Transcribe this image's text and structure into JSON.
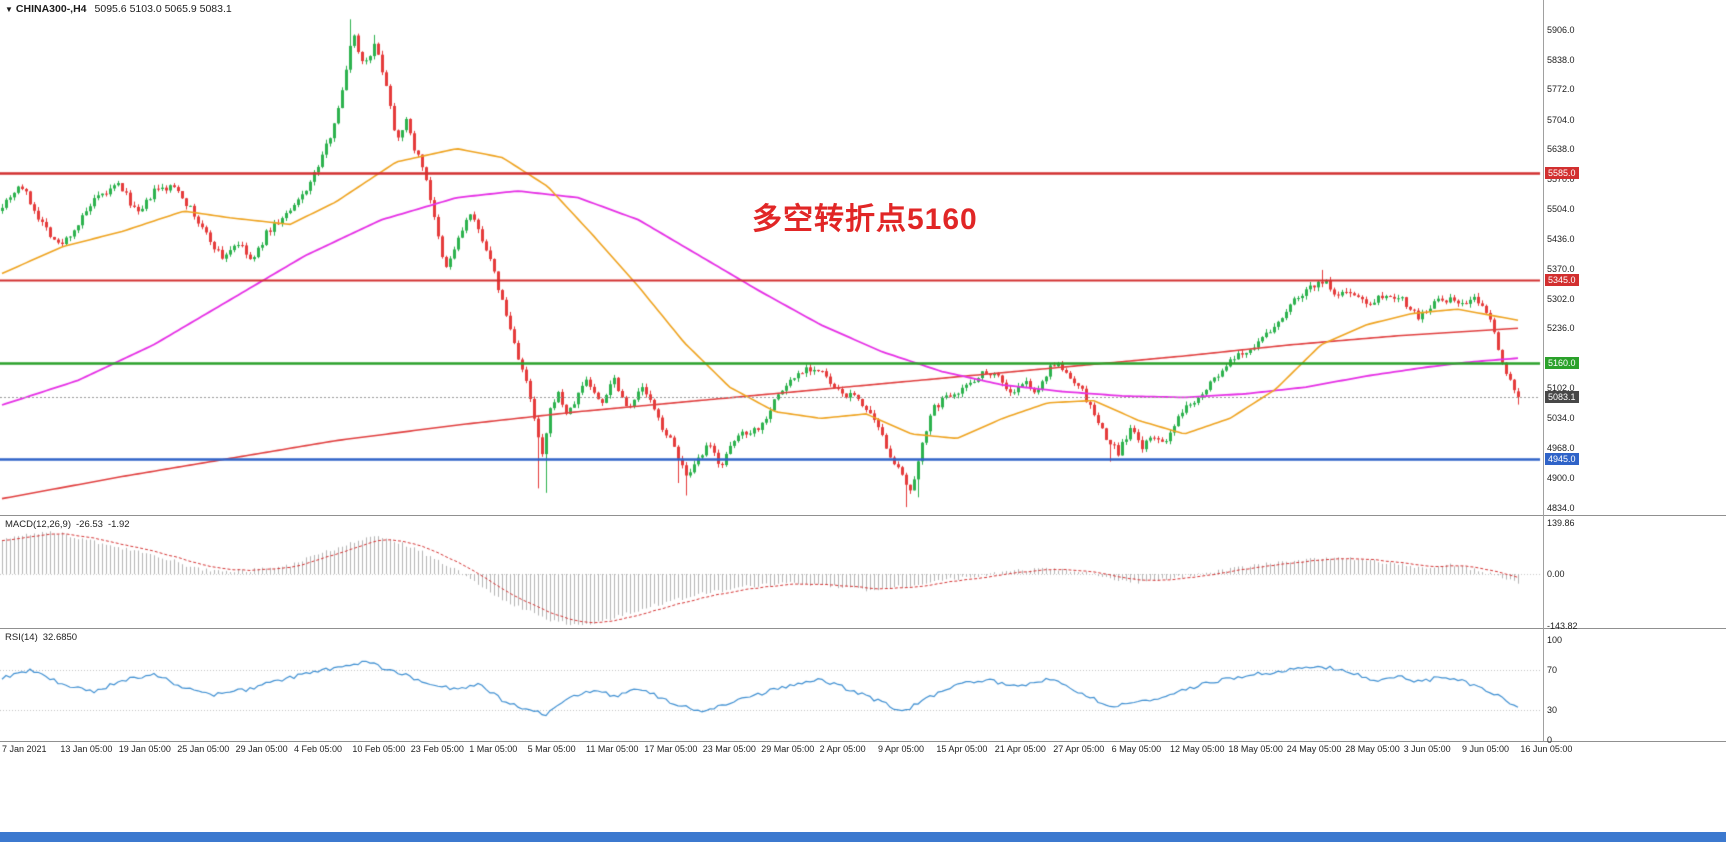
{
  "header": {
    "marker": "▼",
    "symbol_period": "CHINA300-,H4",
    "ohlc": "5095.6 5103.0 5065.9 5083.1"
  },
  "annotation": {
    "text": "多空转折点5160",
    "color": "#e12626"
  },
  "price_axis": {
    "ticks": [
      5906,
      5838,
      5772,
      5704,
      5638,
      5570,
      5504,
      5436,
      5370,
      5302,
      5236,
      5102,
      5034,
      4968,
      4900,
      4834
    ]
  },
  "levels": [
    {
      "price": 5585,
      "label": "5585.0",
      "color": "#d22f2f",
      "line_width": 2.5
    },
    {
      "price": 5345,
      "label": "5345.0",
      "color": "#d22f2f",
      "line_width": 2
    },
    {
      "price": 5160,
      "label": "5160.0",
      "color": "#2aa12a",
      "line_width": 2.5
    },
    {
      "price": 4945,
      "label": "4945.0",
      "color": "#2f63c8",
      "line_width": 2.5
    }
  ],
  "current_price": {
    "label": "5083.1",
    "value": 5083.1,
    "badge_color": "#474747",
    "line_color": "#9a9a9a"
  },
  "macd_panel": {
    "label": "MACD(12,26,9)",
    "value": "-26.53",
    "signal": "-1.92",
    "ticks": [
      {
        "label": "139.86",
        "value": 139.86
      },
      {
        "label": "0.00",
        "value": 0
      },
      {
        "label": "-143.82",
        "value": -143.82
      }
    ]
  },
  "rsi_panel": {
    "label": "RSI(14)",
    "value": "32.6850",
    "ticks": [
      {
        "label": "100",
        "value": 100
      },
      {
        "label": "70",
        "value": 70
      },
      {
        "label": "30",
        "value": 30
      },
      {
        "label": "0",
        "value": 0
      }
    ]
  },
  "chart_data": {
    "type": "candlestick",
    "symbol": "CHINA300-",
    "timeframe": "H4",
    "date_range": "7 Jan 2021 - 16 Jun 2021",
    "price_range": [
      4834,
      5906
    ],
    "ohlc_current": {
      "open": 5095.6,
      "high": 5103.0,
      "low": 5065.9,
      "close": 5083.1
    },
    "candle_count": 380,
    "seed": 7,
    "noise": {
      "close": 16,
      "wick": 9
    },
    "up_color": "#2db24e",
    "down_color": "#e53b3b",
    "time_labels": [
      "7 Jan 2021",
      "13 Jan 05:00",
      "19 Jan 05:00",
      "25 Jan 05:00",
      "29 Jan 05:00",
      "4 Feb 05:00",
      "10 Feb 05:00",
      "23 Feb 05:00",
      "1 Mar 05:00",
      "5 Mar 05:00",
      "11 Mar 05:00",
      "17 Mar 05:00",
      "23 Mar 05:00",
      "29 Mar 05:00",
      "2 Apr 05:00",
      "9 Apr 05:00",
      "15 Apr 05:00",
      "21 Apr 05:00",
      "27 Apr 05:00",
      "6 May 05:00",
      "12 May 05:00",
      "18 May 05:00",
      "24 May 05:00",
      "28 May 05:00",
      "3 Jun 05:00",
      "9 Jun 05:00",
      "16 Jun 05:00"
    ],
    "close_path": [
      [
        0,
        5515
      ],
      [
        0.012,
        5560
      ],
      [
        0.025,
        5480
      ],
      [
        0.038,
        5420
      ],
      [
        0.05,
        5470
      ],
      [
        0.06,
        5520
      ],
      [
        0.077,
        5560
      ],
      [
        0.09,
        5490
      ],
      [
        0.1,
        5545
      ],
      [
        0.115,
        5555
      ],
      [
        0.13,
        5470
      ],
      [
        0.145,
        5395
      ],
      [
        0.155,
        5430
      ],
      [
        0.165,
        5385
      ],
      [
        0.175,
        5455
      ],
      [
        0.192,
        5505
      ],
      [
        0.205,
        5575
      ],
      [
        0.215,
        5655
      ],
      [
        0.225,
        5775
      ],
      [
        0.2308,
        5905
      ],
      [
        0.238,
        5830
      ],
      [
        0.246,
        5872
      ],
      [
        0.253,
        5790
      ],
      [
        0.26,
        5660
      ],
      [
        0.266,
        5705
      ],
      [
        0.272,
        5640
      ],
      [
        0.279,
        5585
      ],
      [
        0.285,
        5480
      ],
      [
        0.292,
        5365
      ],
      [
        0.3,
        5430
      ],
      [
        0.308,
        5495
      ],
      [
        0.318,
        5430
      ],
      [
        0.327,
        5330
      ],
      [
        0.338,
        5200
      ],
      [
        0.346,
        5110
      ],
      [
        0.353,
        5000
      ],
      [
        0.356,
        4945
      ],
      [
        0.362,
        5060
      ],
      [
        0.366,
        5095
      ],
      [
        0.373,
        5040
      ],
      [
        0.385,
        5125
      ],
      [
        0.395,
        5065
      ],
      [
        0.403,
        5130
      ],
      [
        0.412,
        5060
      ],
      [
        0.423,
        5105
      ],
      [
        0.433,
        5030
      ],
      [
        0.445,
        4960
      ],
      [
        0.452,
        4895
      ],
      [
        0.458,
        4935
      ],
      [
        0.466,
        4975
      ],
      [
        0.474,
        4930
      ],
      [
        0.486,
        5000
      ],
      [
        0.5,
        5015
      ],
      [
        0.51,
        5080
      ],
      [
        0.52,
        5120
      ],
      [
        0.53,
        5150
      ],
      [
        0.54,
        5140
      ],
      [
        0.55,
        5095
      ],
      [
        0.565,
        5080
      ],
      [
        0.577,
        5015
      ],
      [
        0.585,
        4960
      ],
      [
        0.593,
        4905
      ],
      [
        0.6,
        4862
      ],
      [
        0.607,
        4990
      ],
      [
        0.615,
        5060
      ],
      [
        0.625,
        5090
      ],
      [
        0.635,
        5105
      ],
      [
        0.645,
        5135
      ],
      [
        0.655,
        5140
      ],
      [
        0.665,
        5090
      ],
      [
        0.675,
        5115
      ],
      [
        0.683,
        5090
      ],
      [
        0.692,
        5162
      ],
      [
        0.7,
        5140
      ],
      [
        0.71,
        5110
      ],
      [
        0.72,
        5045
      ],
      [
        0.728,
        4990
      ],
      [
        0.736,
        4958
      ],
      [
        0.744,
        5010
      ],
      [
        0.752,
        4972
      ],
      [
        0.76,
        4992
      ],
      [
        0.769,
        4985
      ],
      [
        0.778,
        5050
      ],
      [
        0.79,
        5090
      ],
      [
        0.8,
        5125
      ],
      [
        0.81,
        5160
      ],
      [
        0.82,
        5185
      ],
      [
        0.83,
        5210
      ],
      [
        0.84,
        5242
      ],
      [
        0.85,
        5292
      ],
      [
        0.862,
        5330
      ],
      [
        0.872,
        5345
      ],
      [
        0.88,
        5305
      ],
      [
        0.888,
        5325
      ],
      [
        0.9,
        5292
      ],
      [
        0.912,
        5315
      ],
      [
        0.923,
        5305
      ],
      [
        0.934,
        5262
      ],
      [
        0.945,
        5295
      ],
      [
        0.956,
        5300
      ],
      [
        0.965,
        5290
      ],
      [
        0.972,
        5305
      ],
      [
        0.98,
        5272
      ],
      [
        0.986,
        5205
      ],
      [
        0.992,
        5140
      ],
      [
        1,
        5083
      ]
    ],
    "spikes_low": [
      {
        "f": 0.353,
        "price": 4878
      },
      {
        "f": 0.358,
        "price": 4868
      },
      {
        "f": 0.447,
        "price": 4890
      },
      {
        "f": 0.452,
        "price": 4862
      },
      {
        "f": 0.597,
        "price": 4836
      },
      {
        "f": 0.603,
        "price": 4858
      },
      {
        "f": 0.732,
        "price": 4938
      }
    ],
    "spikes_high": [
      {
        "f": 0.2308,
        "price": 5930
      },
      {
        "f": 0.246,
        "price": 5895
      },
      {
        "f": 0.872,
        "price": 5368
      }
    ],
    "ma": [
      {
        "name": "ma-slow-red",
        "color": "#e04040",
        "width": 1.6,
        "path": [
          [
            0,
            4855
          ],
          [
            0.08,
            4905
          ],
          [
            0.15,
            4945
          ],
          [
            0.22,
            4985
          ],
          [
            0.3,
            5020
          ],
          [
            0.38,
            5050
          ],
          [
            0.46,
            5075
          ],
          [
            0.54,
            5100
          ],
          [
            0.62,
            5125
          ],
          [
            0.7,
            5150
          ],
          [
            0.78,
            5175
          ],
          [
            0.85,
            5200
          ],
          [
            0.92,
            5220
          ],
          [
            1,
            5237
          ]
        ]
      },
      {
        "name": "ma-mid-magenta",
        "color": "#e530e5",
        "width": 1.8,
        "path": [
          [
            0,
            5065
          ],
          [
            0.05,
            5120
          ],
          [
            0.1,
            5200
          ],
          [
            0.15,
            5300
          ],
          [
            0.2,
            5400
          ],
          [
            0.25,
            5480
          ],
          [
            0.3,
            5530
          ],
          [
            0.34,
            5545
          ],
          [
            0.38,
            5530
          ],
          [
            0.42,
            5480
          ],
          [
            0.46,
            5400
          ],
          [
            0.5,
            5320
          ],
          [
            0.54,
            5245
          ],
          [
            0.58,
            5185
          ],
          [
            0.62,
            5140
          ],
          [
            0.66,
            5110
          ],
          [
            0.7,
            5095
          ],
          [
            0.74,
            5085
          ],
          [
            0.78,
            5082
          ],
          [
            0.82,
            5090
          ],
          [
            0.86,
            5105
          ],
          [
            0.9,
            5130
          ],
          [
            0.94,
            5150
          ],
          [
            0.97,
            5162
          ],
          [
            1,
            5170
          ]
        ]
      },
      {
        "name": "ma-fast-orange",
        "color": "#eea320",
        "width": 1.6,
        "path": [
          [
            0,
            5360
          ],
          [
            0.04,
            5420
          ],
          [
            0.08,
            5455
          ],
          [
            0.12,
            5500
          ],
          [
            0.15,
            5485
          ],
          [
            0.19,
            5470
          ],
          [
            0.22,
            5520
          ],
          [
            0.26,
            5610
          ],
          [
            0.3,
            5640
          ],
          [
            0.33,
            5620
          ],
          [
            0.36,
            5555
          ],
          [
            0.39,
            5445
          ],
          [
            0.42,
            5330
          ],
          [
            0.45,
            5205
          ],
          [
            0.48,
            5105
          ],
          [
            0.51,
            5050
          ],
          [
            0.54,
            5035
          ],
          [
            0.57,
            5045
          ],
          [
            0.6,
            5000
          ],
          [
            0.63,
            4990
          ],
          [
            0.66,
            5035
          ],
          [
            0.69,
            5070
          ],
          [
            0.72,
            5075
          ],
          [
            0.75,
            5030
          ],
          [
            0.78,
            5000
          ],
          [
            0.81,
            5035
          ],
          [
            0.84,
            5100
          ],
          [
            0.87,
            5200
          ],
          [
            0.9,
            5245
          ],
          [
            0.93,
            5270
          ],
          [
            0.96,
            5280
          ],
          [
            1,
            5255
          ]
        ]
      }
    ],
    "macd": {
      "range": [
        -143.82,
        139.86
      ],
      "current": -26.53,
      "signal_current": -1.92,
      "hist_color": "#b5b5b5",
      "signal_color": "#d43636",
      "path": [
        [
          0,
          95
        ],
        [
          0.03,
          118
        ],
        [
          0.05,
          100
        ],
        [
          0.08,
          70
        ],
        [
          0.11,
          40
        ],
        [
          0.13,
          12
        ],
        [
          0.16,
          8
        ],
        [
          0.19,
          25
        ],
        [
          0.22,
          70
        ],
        [
          0.245,
          105
        ],
        [
          0.27,
          75
        ],
        [
          0.3,
          10
        ],
        [
          0.33,
          -70
        ],
        [
          0.36,
          -125
        ],
        [
          0.38,
          -143
        ],
        [
          0.4,
          -125
        ],
        [
          0.43,
          -85
        ],
        [
          0.46,
          -55
        ],
        [
          0.49,
          -35
        ],
        [
          0.52,
          -25
        ],
        [
          0.55,
          -35
        ],
        [
          0.575,
          -45
        ],
        [
          0.6,
          -30
        ],
        [
          0.63,
          -12
        ],
        [
          0.66,
          5
        ],
        [
          0.69,
          15
        ],
        [
          0.71,
          8
        ],
        [
          0.73,
          -12
        ],
        [
          0.75,
          -22
        ],
        [
          0.77,
          -12
        ],
        [
          0.8,
          8
        ],
        [
          0.83,
          25
        ],
        [
          0.86,
          38
        ],
        [
          0.885,
          45
        ],
        [
          0.91,
          32
        ],
        [
          0.935,
          18
        ],
        [
          0.955,
          25
        ],
        [
          0.975,
          10
        ],
        [
          0.99,
          -12
        ],
        [
          1,
          -26.53
        ]
      ]
    },
    "rsi": {
      "range": [
        0,
        100
      ],
      "current": 32.685,
      "color": "#4090d2",
      "levels": [
        70,
        30
      ],
      "path": [
        [
          0,
          62
        ],
        [
          0.02,
          70
        ],
        [
          0.04,
          55
        ],
        [
          0.06,
          48
        ],
        [
          0.08,
          60
        ],
        [
          0.1,
          66
        ],
        [
          0.12,
          52
        ],
        [
          0.14,
          45
        ],
        [
          0.16,
          50
        ],
        [
          0.18,
          58
        ],
        [
          0.2,
          66
        ],
        [
          0.225,
          74
        ],
        [
          0.24,
          78
        ],
        [
          0.26,
          68
        ],
        [
          0.28,
          58
        ],
        [
          0.3,
          50
        ],
        [
          0.315,
          55
        ],
        [
          0.33,
          40
        ],
        [
          0.345,
          30
        ],
        [
          0.36,
          26
        ],
        [
          0.375,
          42
        ],
        [
          0.39,
          50
        ],
        [
          0.405,
          44
        ],
        [
          0.42,
          52
        ],
        [
          0.435,
          42
        ],
        [
          0.45,
          33
        ],
        [
          0.465,
          28
        ],
        [
          0.48,
          38
        ],
        [
          0.5,
          46
        ],
        [
          0.52,
          55
        ],
        [
          0.54,
          60
        ],
        [
          0.56,
          50
        ],
        [
          0.58,
          38
        ],
        [
          0.595,
          28
        ],
        [
          0.61,
          42
        ],
        [
          0.63,
          55
        ],
        [
          0.65,
          61
        ],
        [
          0.67,
          52
        ],
        [
          0.69,
          62
        ],
        [
          0.71,
          48
        ],
        [
          0.73,
          34
        ],
        [
          0.75,
          38
        ],
        [
          0.77,
          44
        ],
        [
          0.79,
          55
        ],
        [
          0.81,
          62
        ],
        [
          0.83,
          66
        ],
        [
          0.85,
          70
        ],
        [
          0.87,
          74
        ],
        [
          0.89,
          67
        ],
        [
          0.905,
          59
        ],
        [
          0.92,
          64
        ],
        [
          0.935,
          58
        ],
        [
          0.95,
          63
        ],
        [
          0.965,
          58
        ],
        [
          0.98,
          50
        ],
        [
          1,
          32.7
        ]
      ]
    }
  }
}
